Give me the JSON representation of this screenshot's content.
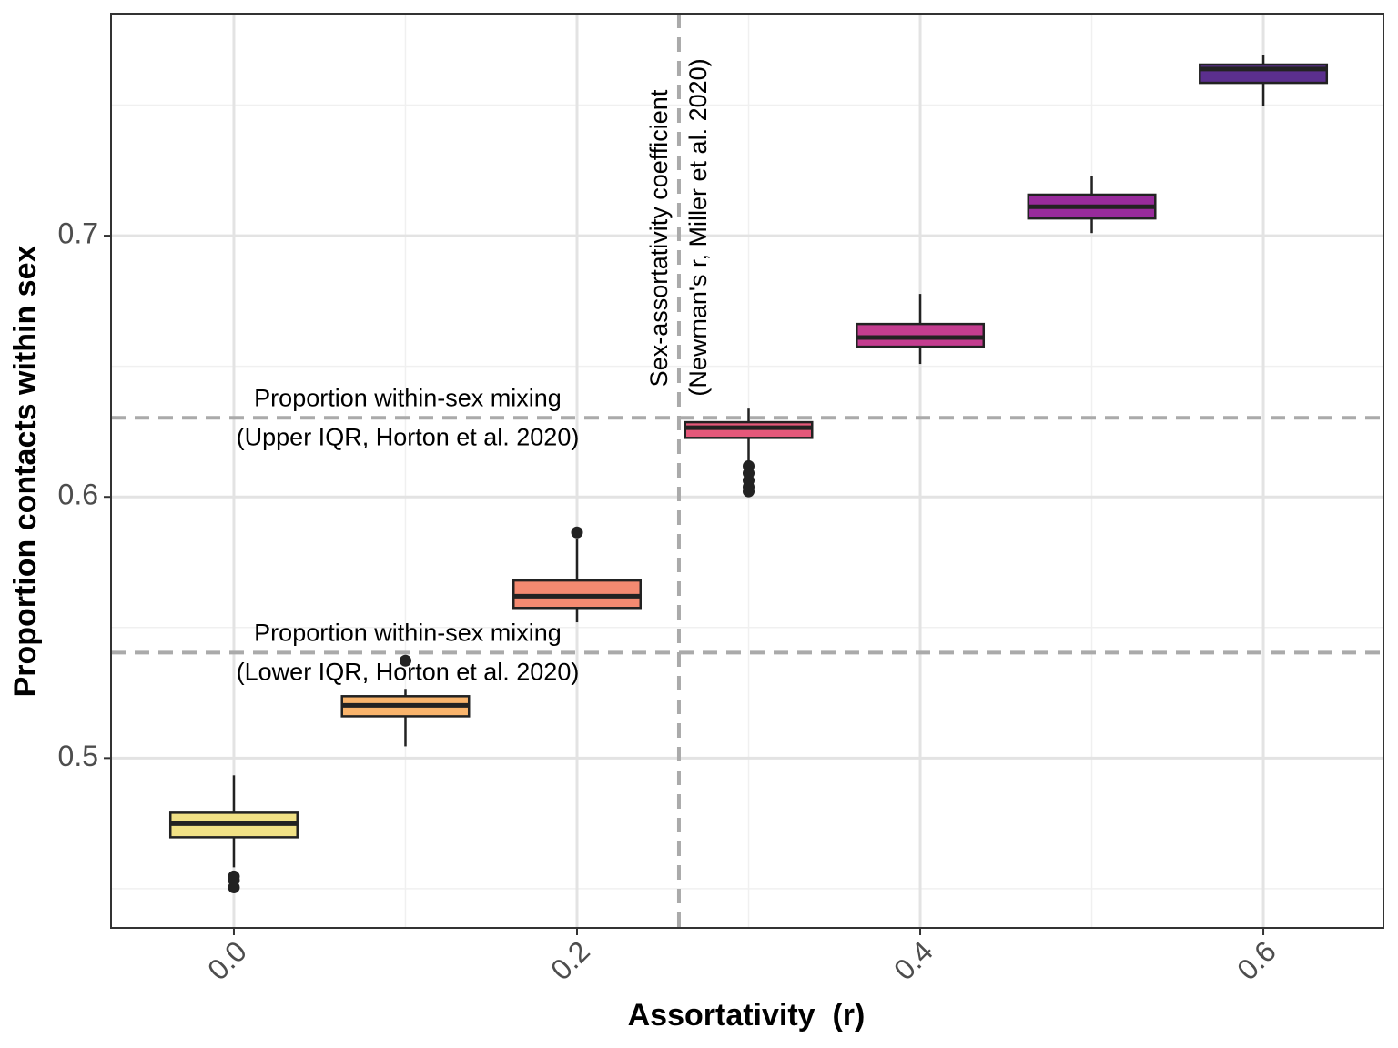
{
  "chart_data": {
    "type": "box",
    "xlabel": "Assortativity  (r)",
    "ylabel": "Proportion contacts within sex",
    "xlim": [
      -0.0716,
      0.67
    ],
    "ylim": [
      0.435,
      0.785
    ],
    "xticks": [
      {
        "value": 0,
        "label": "0.0"
      },
      {
        "value": 0.2,
        "label": "0.2"
      },
      {
        "value": 0.4,
        "label": "0.4"
      },
      {
        "value": 0.6,
        "label": "0.6"
      }
    ],
    "yticks": [
      0.5,
      0.6,
      0.7
    ],
    "xminor": [
      0.1,
      0.3,
      0.5
    ],
    "yminor": [
      0.45,
      0.55,
      0.65,
      0.75
    ],
    "grid": true,
    "boxes": [
      {
        "x": 0,
        "color": "#f1e185",
        "whisker_low": 0.4582,
        "q1": 0.4697,
        "median": 0.4749,
        "q3": 0.4791,
        "whisker_high": 0.4934,
        "outliers": [
          0.4547,
          0.4533,
          0.4505
        ]
      },
      {
        "x": 0.1,
        "color": "#f9b46c",
        "whisker_low": 0.5045,
        "q1": 0.516,
        "median": 0.5202,
        "q3": 0.5237,
        "whisker_high": 0.5265,
        "outliers": [
          0.5373
        ]
      },
      {
        "x": 0.2,
        "color": "#f48a71",
        "whisker_low": 0.552,
        "q1": 0.5575,
        "median": 0.562,
        "q3": 0.568,
        "whisker_high": 0.584,
        "outliers": [
          0.5864
        ]
      },
      {
        "x": 0.3,
        "color": "#e5587a",
        "whisker_low": 0.6125,
        "q1": 0.6226,
        "median": 0.6265,
        "q3": 0.6286,
        "whisker_high": 0.6338,
        "outliers": [
          0.6118,
          0.6091,
          0.6063,
          0.6038,
          0.6021
        ]
      },
      {
        "x": 0.4,
        "color": "#c33d8f",
        "whisker_low": 0.6509,
        "q1": 0.6575,
        "median": 0.661,
        "q3": 0.6662,
        "whisker_high": 0.6777,
        "outliers": []
      },
      {
        "x": 0.5,
        "color": "#982b9b",
        "whisker_low": 0.701,
        "q1": 0.7066,
        "median": 0.7111,
        "q3": 0.7157,
        "whisker_high": 0.723,
        "outliers": []
      },
      {
        "x": 0.6,
        "color": "#5b2f8e",
        "whisker_low": 0.7495,
        "q1": 0.7585,
        "median": 0.7638,
        "q3": 0.7655,
        "whisker_high": 0.769,
        "outliers": []
      }
    ],
    "hlines": [
      {
        "y": 0.6303,
        "text": [
          "Proportion within-sex mixing",
          "(Upper IQR, Horton et al. 2020)"
        ]
      },
      {
        "y": 0.5404,
        "text": [
          "Proportion within-sex mixing",
          "(Lower IQR, Horton et al. 2020)"
        ]
      }
    ],
    "vline": {
      "x": 0.2594,
      "text": [
        "Sex-assortativity coefficient",
        "(Newman's r, Miller et al. 2020)"
      ]
    }
  }
}
